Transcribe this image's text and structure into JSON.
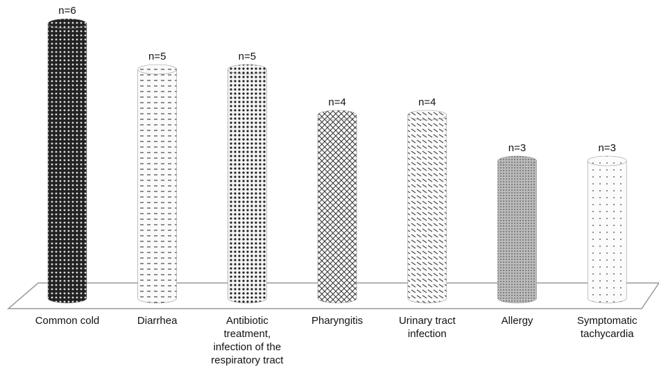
{
  "chart_data": {
    "type": "bar",
    "categories": [
      "Common cold",
      "Diarrhea",
      "Antibiotic treatment, infection of the respiratory tract",
      "Pharyngitis",
      "Urinary tract infection",
      "Allergy",
      "Symptomatic tachycardia"
    ],
    "values": [
      6,
      5,
      5,
      4,
      4,
      3,
      3
    ],
    "value_labels": [
      "n=6",
      "n=5",
      "n=5",
      "n=4",
      "n=4",
      "n=3",
      "n=3"
    ]
  }
}
